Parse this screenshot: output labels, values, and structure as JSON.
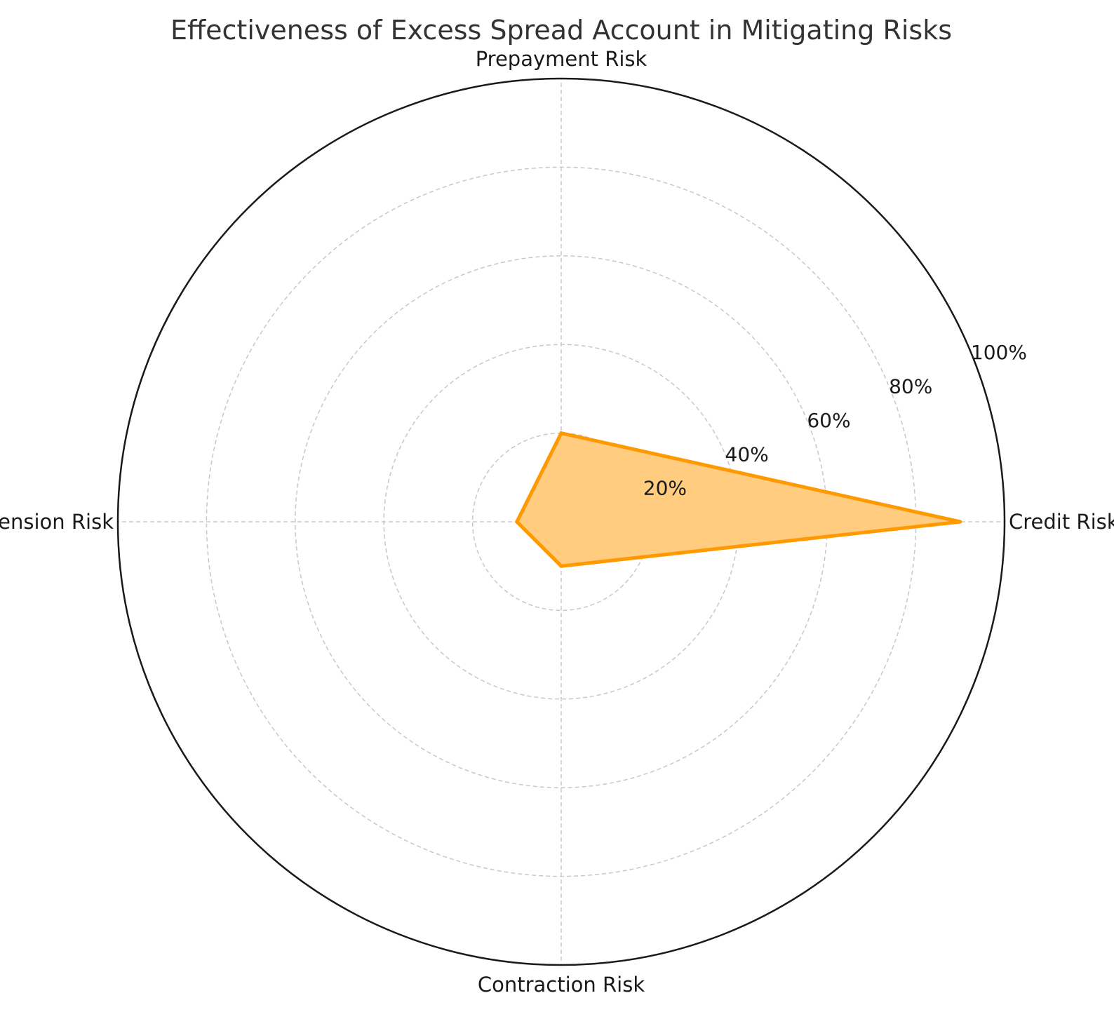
{
  "chart_data": {
    "type": "radar",
    "title": "Effectiveness of Excess Spread Account in Mitigating Risks",
    "categories": [
      "Credit Risk",
      "Prepayment Risk",
      "Extension Risk",
      "Contraction Risk"
    ],
    "series": [
      {
        "values": [
          90,
          20,
          10,
          10
        ]
      }
    ],
    "rlim": [
      0,
      100
    ],
    "radial_ticks": [
      20,
      40,
      60,
      80,
      100
    ],
    "radial_tick_labels": [
      "20%",
      "40%",
      "60%",
      "80%",
      "100%"
    ],
    "grid": true,
    "colors": {
      "line": "#ff9900",
      "fill": "#ffcc80",
      "grid": "#c8c8c8",
      "frame": "#1a1a1a",
      "title": "#333333",
      "text": "#1a1a1a"
    }
  }
}
